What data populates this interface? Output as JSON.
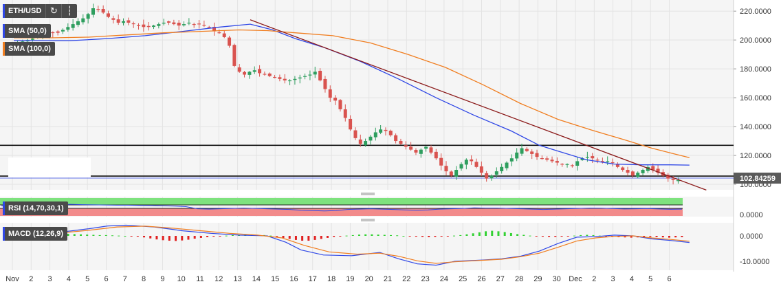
{
  "symbol": "ETH/USD",
  "toolbar": {
    "refresh_icon": "refresh-icon",
    "ruler_icon": "ruler-icon"
  },
  "overlays": [
    {
      "label": "SMA (50,0)",
      "color": "#2f47e6"
    },
    {
      "label": "SMA (100,0)",
      "color": "#f07d1f"
    }
  ],
  "price_tag": "102.84259",
  "chart_data": [
    {
      "type": "candlestick",
      "name": "ETH/USD",
      "y_ticks": [
        "100.0000",
        "120.0000",
        "140.0000",
        "160.0000",
        "180.0000",
        "200.0000",
        "220.0000"
      ],
      "ylim": [
        96,
        225
      ],
      "x_labels": [
        "Nov",
        "2",
        "3",
        "4",
        "5",
        "6",
        "7",
        "8",
        "9",
        "10",
        "11",
        "12",
        "13",
        "14",
        "15",
        "16",
        "17",
        "18",
        "19",
        "20",
        "21",
        "22",
        "23",
        "24",
        "25",
        "26",
        "27",
        "28",
        "29",
        "30",
        "Dec",
        "2",
        "3",
        "4",
        "5",
        "6"
      ],
      "grid": true,
      "last_price": 102.84259,
      "horizontal_levels": [
        127,
        105.7
      ],
      "trendline": [
        {
          "x": 12.6,
          "y": 214
        },
        {
          "x": 36.9,
          "y": 96
        }
      ],
      "close": [
        198,
        199,
        200,
        201,
        203,
        206,
        206,
        205,
        205,
        207,
        209,
        211,
        213,
        215,
        218,
        222,
        221,
        219,
        216,
        214,
        212,
        213,
        212,
        211,
        210,
        209,
        209,
        210,
        211,
        212,
        212,
        211,
        210,
        211,
        212,
        211,
        211,
        210,
        209,
        206,
        205,
        202,
        196,
        182,
        178,
        176,
        178,
        179,
        177,
        176,
        175,
        174,
        173,
        172,
        172,
        173,
        174,
        175,
        176,
        178,
        172,
        166,
        160,
        158,
        152,
        146,
        138,
        132,
        128,
        130,
        133,
        136,
        138,
        137,
        134,
        130,
        128,
        126,
        124,
        122,
        124,
        126,
        122,
        118,
        113,
        109,
        106,
        110,
        114,
        117,
        116,
        112,
        108,
        104,
        106,
        109,
        112,
        115,
        118,
        122,
        125,
        123,
        121,
        119,
        118,
        117,
        116,
        115,
        114,
        114,
        113,
        116,
        118,
        119,
        118,
        117,
        116,
        116,
        115,
        112,
        110,
        108,
        106,
        108,
        110,
        112,
        110,
        108,
        106,
        104,
        103,
        102.8
      ],
      "sma": [
        {
          "name": "SMA (50,0)",
          "color": "#2f47e6",
          "points": [
            [
              0,
              199.5
            ],
            [
              3,
              199.5
            ],
            [
              5,
              201
            ],
            [
              7,
              203
            ],
            [
              9,
              206
            ],
            [
              11,
              209
            ],
            [
              12.6,
              211
            ],
            [
              13.8,
              207
            ],
            [
              15,
              201
            ],
            [
              16.5,
              195
            ],
            [
              18.5,
              185
            ],
            [
              20.5,
              173
            ],
            [
              22.5,
              160
            ],
            [
              24.5,
              148
            ],
            [
              26.5,
              137
            ],
            [
              28,
              127
            ],
            [
              29,
              123
            ],
            [
              30.5,
              117
            ],
            [
              32,
              114
            ],
            [
              33.5,
              113.5
            ],
            [
              35,
              113.5
            ],
            [
              36,
              113.3
            ]
          ]
        },
        {
          "name": "SMA (100,0)",
          "color": "#f07d1f",
          "points": [
            [
              0,
              201.5
            ],
            [
              2,
              201.5
            ],
            [
              4,
              202
            ],
            [
              6,
              203.5
            ],
            [
              8,
              205
            ],
            [
              10,
              206
            ],
            [
              12,
              207
            ],
            [
              13.5,
              206.5
            ],
            [
              15,
              205
            ],
            [
              17,
              203
            ],
            [
              19,
              198
            ],
            [
              21,
              190
            ],
            [
              23,
              181
            ],
            [
              25,
              169
            ],
            [
              27,
              156
            ],
            [
              29,
              145
            ],
            [
              30.8,
              137.5
            ],
            [
              32.5,
              131
            ],
            [
              34,
              125
            ],
            [
              35.2,
              121
            ],
            [
              36,
              118.5
            ]
          ]
        }
      ]
    },
    {
      "type": "line",
      "name": "RSI (14,70,30,1)",
      "label": "RSI (14,70,30,1)",
      "y_ticks": [
        "0.0000"
      ],
      "values": [
        56,
        58,
        59,
        60,
        62,
        64,
        65,
        63,
        62,
        61,
        60,
        60,
        59,
        58,
        57,
        55,
        52,
        40,
        38,
        40,
        42,
        44,
        42,
        40,
        38,
        36,
        32,
        30,
        28,
        30,
        36,
        38,
        40,
        38,
        36,
        34,
        32,
        34,
        38,
        40,
        42,
        45,
        44,
        44,
        42,
        40,
        38,
        36,
        38,
        40,
        42,
        44,
        43,
        41,
        39,
        40,
        41,
        39,
        37,
        38
      ]
    },
    {
      "type": "bar",
      "name": "MACD (12,26,9)",
      "label": "MACD (12,26,9)",
      "y_ticks": [
        "0.0000",
        "-10.0000"
      ],
      "ylim": [
        -12,
        5
      ],
      "histogram": [
        0.2,
        0.3,
        0.5,
        0.7,
        0.9,
        1.0,
        1.1,
        1.0,
        0.8,
        0.7,
        0.6,
        0.5,
        0.4,
        0.3,
        0.3,
        0.2,
        0.1,
        0.0,
        -0.1,
        -0.3,
        -0.6,
        -1.0,
        -1.4,
        -1.7,
        -1.9,
        -2.0,
        -1.8,
        -1.5,
        -1.1,
        -0.8,
        -0.5,
        -0.3,
        -0.1,
        0.1,
        0.3,
        0.4,
        0.5,
        0.5,
        0.4,
        0.3,
        0.1,
        -0.3,
        -0.8,
        -1.2,
        -1.6,
        -1.9,
        -1.9,
        -1.6,
        -1.2,
        -0.8,
        -0.4,
        -0.1,
        0.1,
        0.3,
        0.5,
        0.6,
        0.6,
        0.5,
        0.4,
        0.3,
        0.2,
        0.0,
        -0.2,
        -0.3,
        -0.4,
        -0.5,
        -0.4,
        -0.3,
        -0.1,
        0.1,
        0.3,
        0.6,
        1.0,
        1.4,
        1.8,
        2.0,
        1.8,
        1.5,
        1.1,
        0.7,
        0.4,
        0.1,
        -0.1,
        -0.3,
        -0.4,
        -0.4,
        -0.3,
        -0.1,
        0.1,
        0.3,
        0.4,
        0.3,
        0.1,
        -0.1,
        -0.3,
        -0.5,
        -0.6,
        -0.7,
        -0.6,
        -0.5,
        -0.4,
        -0.5,
        -0.6,
        -0.7,
        -0.6,
        -0.5
      ],
      "macd": [
        [
          0,
          0
        ],
        [
          2,
          1
        ],
        [
          4,
          2.8
        ],
        [
          5,
          3.9
        ],
        [
          6,
          4.2
        ],
        [
          7.5,
          3.5
        ],
        [
          9,
          2
        ],
        [
          10.5,
          1
        ],
        [
          12,
          0.3
        ],
        [
          13.5,
          0
        ],
        [
          14.5,
          -2.5
        ],
        [
          15.3,
          -5.5
        ],
        [
          16.5,
          -7.5
        ],
        [
          18,
          -7.8
        ],
        [
          19.5,
          -6.5
        ],
        [
          20.5,
          -9
        ],
        [
          21.5,
          -11
        ],
        [
          22.5,
          -11.5
        ],
        [
          23.5,
          -10
        ],
        [
          25,
          -9.5
        ],
        [
          26,
          -9
        ],
        [
          27,
          -8
        ],
        [
          28,
          -6
        ],
        [
          29,
          -3
        ],
        [
          30,
          -0.5
        ],
        [
          31,
          -0.3
        ],
        [
          32,
          0.3
        ],
        [
          33,
          0
        ],
        [
          34,
          -1.2
        ],
        [
          35,
          -1.8
        ],
        [
          36,
          -2.6
        ]
      ],
      "signal": [
        [
          0,
          0
        ],
        [
          2,
          0.8
        ],
        [
          4,
          2.2
        ],
        [
          5.5,
          3.5
        ],
        [
          7,
          3.8
        ],
        [
          8.5,
          3
        ],
        [
          10,
          2
        ],
        [
          11.5,
          1
        ],
        [
          13,
          0.3
        ],
        [
          14.3,
          -0.8
        ],
        [
          15.5,
          -3.8
        ],
        [
          16.8,
          -6.3
        ],
        [
          18.3,
          -7.2
        ],
        [
          19.5,
          -6.8
        ],
        [
          20.5,
          -8
        ],
        [
          21.5,
          -9.8
        ],
        [
          22.5,
          -10.8
        ],
        [
          23.5,
          -10.2
        ],
        [
          25,
          -9.6
        ],
        [
          26,
          -9.2
        ],
        [
          27,
          -8.2
        ],
        [
          28,
          -6.8
        ],
        [
          29,
          -4.5
        ],
        [
          30,
          -2
        ],
        [
          31,
          -0.8
        ],
        [
          32,
          -0.2
        ],
        [
          33,
          0
        ],
        [
          34,
          -0.8
        ],
        [
          35,
          -1.4
        ],
        [
          36,
          -2.1
        ]
      ]
    }
  ]
}
